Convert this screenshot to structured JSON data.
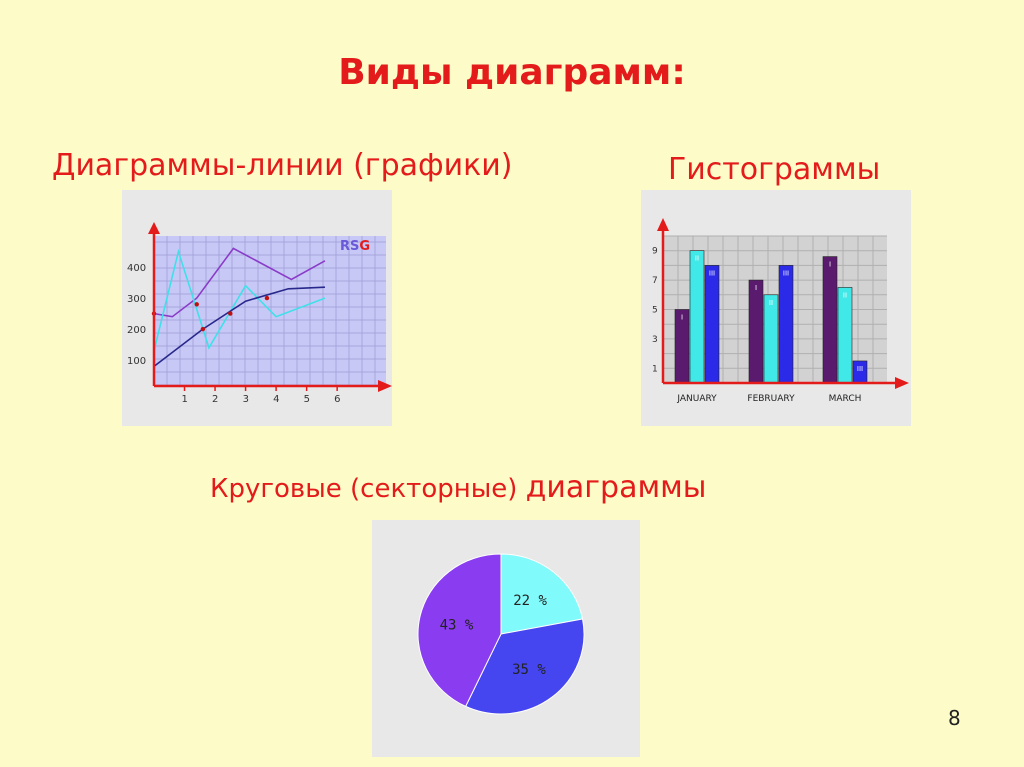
{
  "title": "Виды диаграмм:",
  "page_number": "8",
  "sections": {
    "line": "Диаграммы-линии (графики)",
    "histogram": "Гистограммы",
    "pie_part1": "Круговые (секторные) ",
    "pie_part2": "диаграммы"
  },
  "colors": {
    "title": "#e31b1b",
    "background": "#fdfbc8",
    "axis": "#e31b1b",
    "plot_area": "#c8c8f6",
    "series_purple": "#8a3cc8",
    "series_cyan": "#40e0e8",
    "series_navy": "#28288c",
    "bar_1": "#5a1a6e",
    "bar_2": "#40e8e8",
    "bar_3": "#2a2ae8",
    "pie_cyan": "#80fafa",
    "pie_blue": "#4646f0",
    "pie_purple": "#8a3cf0"
  },
  "chart_data": [
    {
      "type": "line",
      "logo": "RSG",
      "x": [
        1,
        2,
        3,
        4,
        5,
        6
      ],
      "x_tick_labels": [
        "1",
        "2",
        "3",
        "4",
        "5",
        "6"
      ],
      "y_tick_labels": [
        "100",
        "200",
        "300",
        "400"
      ],
      "xlim": [
        0,
        7.6
      ],
      "ylim": [
        20,
        500
      ],
      "grid": true,
      "series": [
        {
          "color_key": "series_purple",
          "x": [
            0,
            0.6,
            1.4,
            2.6,
            4.5,
            5.6
          ],
          "y": [
            250,
            240,
            300,
            460,
            360,
            420
          ]
        },
        {
          "color_key": "series_cyan",
          "x": [
            0,
            0.8,
            1.8,
            3.0,
            4.0,
            5.6
          ],
          "y": [
            130,
            450,
            140,
            340,
            240,
            300
          ]
        },
        {
          "color_key": "series_navy",
          "x": [
            0,
            1.6,
            3.0,
            4.4,
            5.6
          ],
          "y": [
            80,
            200,
            290,
            330,
            335
          ]
        }
      ],
      "markers": [
        {
          "x": 0,
          "y": 250
        },
        {
          "x": 1.4,
          "y": 280
        },
        {
          "x": 1.6,
          "y": 200
        },
        {
          "x": 2.5,
          "y": 250
        },
        {
          "x": 3.7,
          "y": 300
        }
      ]
    },
    {
      "type": "bar",
      "categories": [
        "JANUARY",
        "FEBRUARY",
        "MARCH"
      ],
      "bar_labels": [
        "I",
        "II",
        "III"
      ],
      "y_tick_labels": [
        "1",
        "3",
        "5",
        "7",
        "9"
      ],
      "ylim": [
        0,
        10
      ],
      "grid": true,
      "series": [
        {
          "color_key": "bar_1",
          "values": [
            5,
            7,
            8.6
          ]
        },
        {
          "color_key": "bar_2",
          "values": [
            9,
            6,
            6.5
          ]
        },
        {
          "color_key": "bar_3",
          "values": [
            8,
            8,
            1.5
          ]
        }
      ]
    },
    {
      "type": "pie",
      "slices": [
        {
          "label": "22 %",
          "value": 22,
          "color_key": "pie_cyan"
        },
        {
          "label": "35 %",
          "value": 35,
          "color_key": "pie_blue"
        },
        {
          "label": "43 %",
          "value": 43,
          "color_key": "pie_purple"
        }
      ]
    }
  ]
}
